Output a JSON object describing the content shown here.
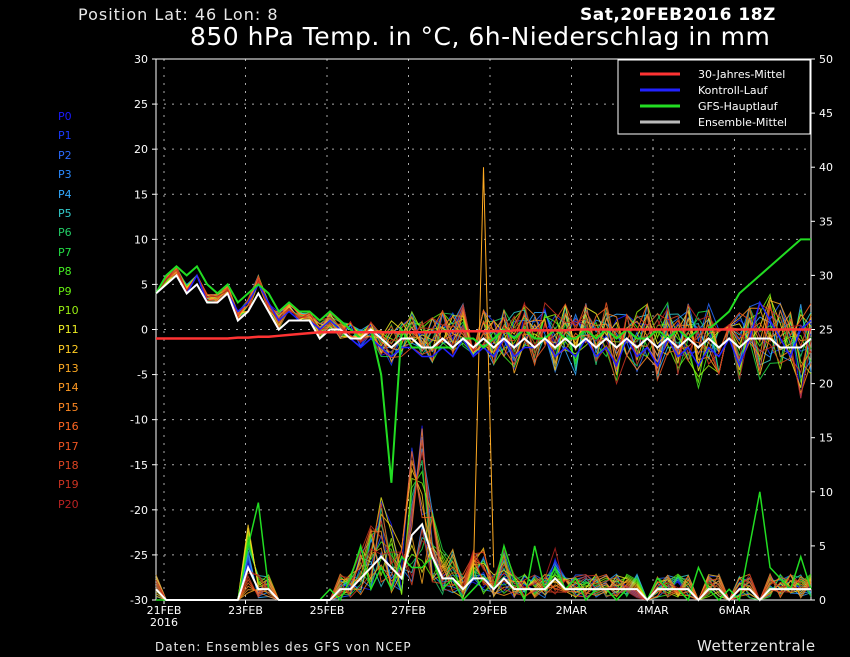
{
  "header": {
    "position": "Position   Lat: 46 Lon: 8",
    "date": "Sat,20FEB2016 18Z",
    "title": "850 hPa Temp. in °C, 6h-Niederschlag in mm"
  },
  "footer": {
    "source": "Daten: Ensembles des GFS von NCEP",
    "brand": "Wetterzentrale"
  },
  "members": [
    {
      "label": "P0",
      "color": "#1a1aff"
    },
    {
      "label": "P1",
      "color": "#1a3aff"
    },
    {
      "label": "P2",
      "color": "#2a6aff"
    },
    {
      "label": "P3",
      "color": "#2a8aff"
    },
    {
      "label": "P4",
      "color": "#33aaff"
    },
    {
      "label": "P5",
      "color": "#33cccc"
    },
    {
      "label": "P6",
      "color": "#22cc66"
    },
    {
      "label": "P7",
      "color": "#22dd44"
    },
    {
      "label": "P8",
      "color": "#44ee22"
    },
    {
      "label": "P9",
      "color": "#66ee11"
    },
    {
      "label": "P10",
      "color": "#99ee11"
    },
    {
      "label": "P11",
      "color": "#eeee22"
    },
    {
      "label": "P12",
      "color": "#ffcc22"
    },
    {
      "label": "P13",
      "color": "#ffaa22"
    },
    {
      "label": "P14",
      "color": "#ff9922"
    },
    {
      "label": "P15",
      "color": "#ff8822"
    },
    {
      "label": "P16",
      "color": "#ff6622"
    },
    {
      "label": "P17",
      "color": "#ee5522"
    },
    {
      "label": "P18",
      "color": "#dd4422"
    },
    {
      "label": "P19",
      "color": "#cc3322"
    },
    {
      "label": "P20",
      "color": "#bb2222"
    }
  ],
  "chart_data": {
    "type": "line",
    "left_axis": {
      "label": "",
      "ylim": [
        -30,
        30
      ],
      "ticks": [
        "30",
        "25",
        "20",
        "15",
        "10",
        "5",
        "0",
        "-5",
        "-10",
        "-15",
        "-20",
        "-25",
        "-30"
      ]
    },
    "right_axis": {
      "label": "",
      "ylim": [
        0,
        50
      ],
      "ticks": [
        "50",
        "45",
        "40",
        "35",
        "30",
        "25",
        "20",
        "15",
        "10",
        "5",
        "0"
      ]
    },
    "x_ticks": [
      "21FEB",
      "23FEB",
      "25FEB",
      "27FEB",
      "29FEB",
      "2MAR",
      "4MAR",
      "6MAR"
    ],
    "x_sub_tick": "2016",
    "grid": true,
    "legend_position": "top-right",
    "legend": [
      {
        "name": "30-Jahres-Mittel",
        "color": "#ff3333"
      },
      {
        "name": "Kontroll-Lauf",
        "color": "#2222ff"
      },
      {
        "name": "GFS-Hauptlauf",
        "color": "#22dd22"
      },
      {
        "name": "Ensemble-Mittel",
        "color": "#bbbbbb"
      }
    ],
    "time_step_hours": 6,
    "climate_mean_temp": [
      -1.0,
      -1.0,
      -1.0,
      -1.0,
      -1.0,
      -1.0,
      -1.0,
      -1.0,
      -0.9,
      -0.9,
      -0.8,
      -0.8,
      -0.7,
      -0.6,
      -0.5,
      -0.4,
      -0.3,
      -0.3,
      -0.3,
      -0.3,
      -0.3,
      -0.3,
      -0.3,
      -0.3,
      -0.3,
      -0.3,
      -0.3,
      -0.3,
      -0.2,
      -0.2,
      -0.2,
      -0.2,
      -0.2,
      -0.2,
      -0.2,
      -0.1,
      -0.1,
      -0.1,
      -0.1,
      -0.1,
      -0.1,
      0.0,
      0.0,
      0.0,
      0.0,
      0.0,
      0.0,
      0.0,
      0.0,
      0.0,
      0.0,
      0.0,
      0.0,
      0.0,
      0.0,
      0.0,
      0.0,
      0.0,
      0.0,
      0.0,
      0.0,
      0.0,
      0.0,
      0.0,
      0.0
    ],
    "main_run_temp": [
      4,
      6,
      7,
      6,
      7,
      5,
      4,
      5,
      3,
      4,
      5,
      4,
      2,
      3,
      2,
      2,
      1,
      2,
      1,
      0,
      -1,
      0,
      -5,
      -17,
      0,
      -2,
      -2,
      -2,
      -2,
      -2,
      -1,
      -1,
      -2,
      -1,
      0,
      -1,
      0,
      -1,
      -1,
      0,
      -1,
      -1,
      0,
      -1,
      0,
      -1,
      0,
      -1,
      -1,
      0,
      -1,
      0,
      -1,
      0,
      0,
      1,
      2,
      4,
      5,
      6,
      7,
      8,
      9,
      10,
      10
    ],
    "control_run_temp": [
      4,
      5,
      6,
      4,
      6,
      3,
      3,
      4,
      2,
      3,
      5,
      3,
      1,
      2,
      1,
      1,
      0,
      1,
      0,
      -1,
      -2,
      -1,
      -2,
      -3,
      -2,
      -2,
      -3,
      -3,
      -2,
      -3,
      -1,
      -3,
      -2,
      -3,
      -1,
      -3,
      -2,
      -2,
      -1,
      -3,
      -2,
      -3,
      -1,
      -3,
      -2,
      -4,
      -1,
      -3,
      -2,
      -4,
      -1,
      -3,
      -2,
      -4,
      -2,
      -3,
      -1,
      -4,
      -1,
      3,
      1,
      -1,
      -3,
      0,
      1
    ],
    "ensemble_mean_temp": [
      4,
      5,
      6,
      4,
      5,
      3,
      3,
      4,
      1,
      2,
      4,
      2,
      0,
      1,
      1,
      1,
      -1,
      0,
      0,
      -1,
      -1,
      0,
      -1,
      -2,
      -1,
      -1,
      -2,
      -2,
      -1,
      -2,
      -1,
      -2,
      -1,
      -2,
      -1,
      -2,
      -1,
      -2,
      -1,
      -2,
      -1,
      -2,
      -1,
      -2,
      -1,
      -2,
      -1,
      -2,
      -1,
      -2,
      -1,
      -2,
      -1,
      -2,
      -1,
      -2,
      -1,
      -2,
      -1,
      -1,
      -1,
      -2,
      -2,
      -2,
      -1
    ],
    "ensemble_spread_temp": [
      [
        4,
        5,
        6,
        4,
        6,
        3,
        3,
        4,
        1,
        2,
        5,
        2,
        0,
        2,
        1,
        1,
        -1,
        0,
        -1,
        -2,
        -2,
        -1,
        -3,
        -4,
        -3,
        -2,
        -3,
        -4,
        -2,
        -3,
        -2,
        -3,
        -2,
        -4,
        -3,
        -5,
        -2,
        -4,
        -2,
        -5,
        -3,
        -5,
        -2,
        -4,
        -3,
        -6,
        -3,
        -5,
        -4,
        -6,
        -3,
        -5,
        -4,
        -7,
        -4,
        -5,
        -3,
        -6,
        -2,
        -6,
        -4,
        -5,
        -4,
        -8,
        -5
      ],
      [
        4,
        6,
        7,
        5,
        6,
        4,
        4,
        5,
        2,
        4,
        6,
        3,
        2,
        3,
        2,
        2,
        1,
        2,
        1,
        1,
        0,
        1,
        0,
        1,
        1,
        2,
        1,
        2,
        3,
        2,
        3,
        2,
        3,
        2,
        3,
        2,
        3,
        2,
        3,
        2,
        3,
        2,
        3,
        2,
        3,
        2,
        3,
        2,
        3,
        2,
        3,
        2,
        3,
        2,
        3,
        2,
        3,
        2,
        3,
        3,
        4,
        3,
        2,
        3,
        3
      ]
    ],
    "ensemble_mean_precip": [
      1,
      0,
      0,
      0,
      0,
      0,
      0,
      0,
      0,
      3,
      1,
      1,
      0,
      0,
      0,
      0,
      0,
      0,
      1,
      1,
      2,
      3,
      4,
      3,
      2,
      6,
      7,
      4,
      2,
      2,
      1,
      2,
      2,
      1,
      2,
      1,
      1,
      1,
      1,
      2,
      1,
      1,
      1,
      1,
      1,
      1,
      1,
      1,
      0,
      1,
      1,
      1,
      1,
      0,
      1,
      1,
      0,
      1,
      1,
      0,
      1,
      1,
      1,
      1,
      1
    ],
    "main_run_precip": [
      0,
      0,
      0,
      0,
      0,
      0,
      0,
      0,
      0,
      5,
      9,
      1,
      0,
      0,
      0,
      0,
      0,
      1,
      0,
      2,
      5,
      1,
      3,
      1,
      4,
      3,
      3,
      4,
      1,
      2,
      0,
      1,
      2,
      1,
      5,
      2,
      0,
      5,
      1,
      3,
      1,
      2,
      0,
      1,
      1,
      0,
      1,
      1,
      0,
      2,
      1,
      1,
      0,
      3,
      1,
      0,
      1,
      0,
      5,
      10,
      3,
      2,
      1,
      4,
      1
    ],
    "max_precip_peak": {
      "day": "28FEB",
      "value": 40
    }
  }
}
